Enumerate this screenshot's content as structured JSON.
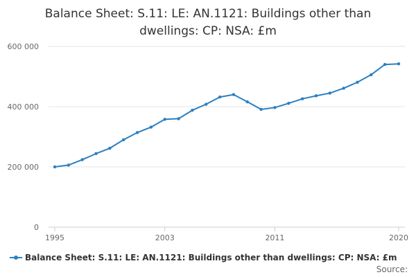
{
  "chart_data": {
    "type": "line",
    "title": "Balance Sheet: S.11: LE: AN.1121: Buildings other than dwellings: CP: NSA: £m",
    "title_lines": [
      "Balance Sheet: S.11: LE: AN.1121: Buildings other than",
      "dwellings: CP: NSA: £m"
    ],
    "xlabel": "",
    "ylabel": "",
    "x_ticks": [
      "1995",
      "2003",
      "2011",
      "2020"
    ],
    "y_ticks": [
      "0",
      "200 000",
      "400 000",
      "600 000"
    ],
    "ylim": [
      0,
      600000
    ],
    "xlim": [
      1995,
      2020
    ],
    "grid": true,
    "legend_position": "bottom",
    "colors": {
      "series": "#2a7fc0",
      "grid": "#e6e6e6",
      "axis": "#cccccc"
    },
    "series": [
      {
        "name": "Balance Sheet: S.11: LE: AN.1121: Buildings other than dwellings: CP: NSA: £m",
        "x": [
          1995,
          1996,
          1997,
          1998,
          1999,
          2000,
          2001,
          2002,
          2003,
          2004,
          2005,
          2006,
          2007,
          2008,
          2009,
          2010,
          2011,
          2012,
          2013,
          2014,
          2015,
          2016,
          2017,
          2018,
          2019,
          2020
        ],
        "values": [
          200000,
          206000,
          224000,
          244000,
          262000,
          290000,
          314000,
          332000,
          358000,
          360000,
          388000,
          408000,
          432000,
          440000,
          416000,
          391000,
          397000,
          411000,
          426000,
          436000,
          445000,
          461000,
          481000,
          506000,
          540000,
          542000
        ]
      }
    ]
  },
  "legend": {
    "label": "Balance Sheet: S.11: LE: AN.1121: Buildings other than dwellings: CP: NSA: £m"
  },
  "source": {
    "label": "Source:"
  }
}
